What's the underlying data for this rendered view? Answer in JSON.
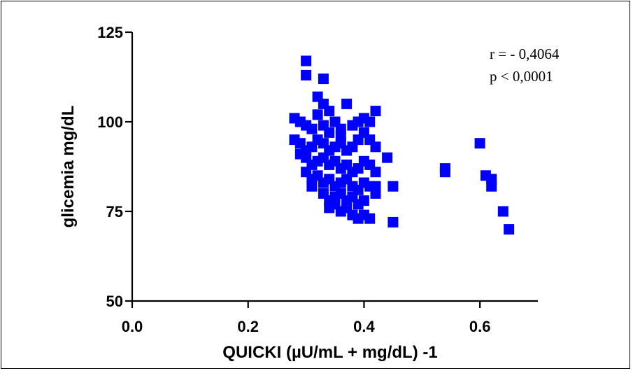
{
  "chart_data": {
    "type": "scatter",
    "title": "",
    "xlabel": "QUICKI (µU/mL + mg/dL) -1",
    "ylabel": "glicemia mg/dL",
    "xlim": [
      0.0,
      0.7
    ],
    "ylim": [
      50,
      125
    ],
    "xticks": [
      "0.0",
      "0.2",
      "0.4",
      "0.6"
    ],
    "yticks": [
      "50",
      "75",
      "100",
      "125"
    ],
    "grid": false,
    "marker": "square",
    "color": "#0000ff",
    "annotations": [
      "r = - 0,4064",
      "p < 0,0001"
    ],
    "points": [
      [
        0.3,
        117
      ],
      [
        0.3,
        113
      ],
      [
        0.33,
        112
      ],
      [
        0.32,
        107
      ],
      [
        0.33,
        105
      ],
      [
        0.34,
        103
      ],
      [
        0.37,
        105
      ],
      [
        0.35,
        100
      ],
      [
        0.32,
        102
      ],
      [
        0.28,
        101
      ],
      [
        0.29,
        100
      ],
      [
        0.3,
        99
      ],
      [
        0.31,
        98
      ],
      [
        0.33,
        99
      ],
      [
        0.34,
        97
      ],
      [
        0.36,
        98
      ],
      [
        0.38,
        99
      ],
      [
        0.39,
        100
      ],
      [
        0.4,
        101
      ],
      [
        0.41,
        100
      ],
      [
        0.42,
        103
      ],
      [
        0.36,
        96
      ],
      [
        0.28,
        95
      ],
      [
        0.29,
        94
      ],
      [
        0.3,
        92
      ],
      [
        0.31,
        93
      ],
      [
        0.32,
        95
      ],
      [
        0.33,
        94
      ],
      [
        0.34,
        92
      ],
      [
        0.35,
        93
      ],
      [
        0.36,
        94
      ],
      [
        0.37,
        92
      ],
      [
        0.38,
        93
      ],
      [
        0.39,
        95
      ],
      [
        0.4,
        97
      ],
      [
        0.41,
        95
      ],
      [
        0.42,
        93
      ],
      [
        0.44,
        90
      ],
      [
        0.29,
        91
      ],
      [
        0.3,
        90
      ],
      [
        0.31,
        88
      ],
      [
        0.32,
        89
      ],
      [
        0.33,
        90
      ],
      [
        0.34,
        88
      ],
      [
        0.35,
        89
      ],
      [
        0.36,
        87
      ],
      [
        0.37,
        88
      ],
      [
        0.38,
        86
      ],
      [
        0.39,
        87
      ],
      [
        0.4,
        89
      ],
      [
        0.41,
        88
      ],
      [
        0.42,
        86
      ],
      [
        0.3,
        86
      ],
      [
        0.31,
        84
      ],
      [
        0.32,
        85
      ],
      [
        0.33,
        83
      ],
      [
        0.34,
        84
      ],
      [
        0.35,
        82
      ],
      [
        0.36,
        83
      ],
      [
        0.37,
        84
      ],
      [
        0.38,
        82
      ],
      [
        0.39,
        81
      ],
      [
        0.4,
        83
      ],
      [
        0.41,
        82
      ],
      [
        0.42,
        80
      ],
      [
        0.31,
        82
      ],
      [
        0.33,
        80
      ],
      [
        0.34,
        78
      ],
      [
        0.35,
        79
      ],
      [
        0.36,
        80
      ],
      [
        0.37,
        78
      ],
      [
        0.38,
        79
      ],
      [
        0.39,
        77
      ],
      [
        0.4,
        78
      ],
      [
        0.42,
        82
      ],
      [
        0.34,
        76
      ],
      [
        0.35,
        77
      ],
      [
        0.36,
        75
      ],
      [
        0.37,
        76
      ],
      [
        0.38,
        74
      ],
      [
        0.39,
        73
      ],
      [
        0.4,
        74
      ],
      [
        0.41,
        73
      ],
      [
        0.45,
        82
      ],
      [
        0.45,
        72
      ],
      [
        0.54,
        87
      ],
      [
        0.54,
        86
      ],
      [
        0.6,
        94
      ],
      [
        0.61,
        85
      ],
      [
        0.62,
        84
      ],
      [
        0.62,
        82
      ],
      [
        0.64,
        75
      ],
      [
        0.65,
        70
      ]
    ]
  }
}
